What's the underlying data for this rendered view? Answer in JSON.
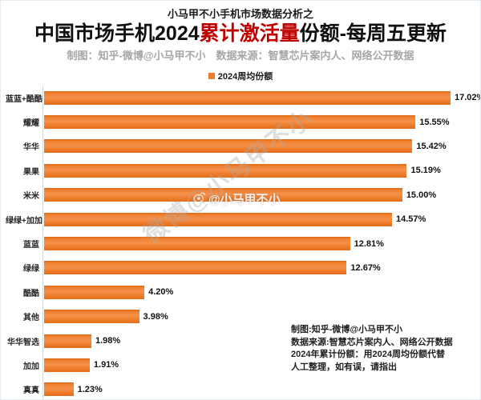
{
  "page": {
    "top_note": "小马甲不小手机市场数据分析之",
    "title": {
      "part1": "中国市场手机2024",
      "highlight": "累计激活量",
      "part2": "份额-每周五更新"
    },
    "subtitle": "制图：知乎-微博@小马甲不小　数据来源：智慧芯片案内人、网络公开数据",
    "legend": {
      "label": "2024周均份额",
      "swatch_color": "#ED7D31"
    }
  },
  "chart_data": {
    "type": "bar",
    "orientation": "horizontal",
    "title": "中国市场手机2024累计激活量份额-每周五更新",
    "legend_label": "2024周均份额",
    "legend_position": "top-center",
    "categories": [
      "蓝蓝+酷酷",
      "耀耀",
      "华华",
      "果果",
      "米米",
      "绿绿+加加",
      "蓝蓝",
      "绿绿",
      "酷酷",
      "其他",
      "华华智选",
      "加加",
      "真真"
    ],
    "values": [
      17.02,
      15.55,
      15.42,
      15.19,
      15.0,
      14.57,
      12.81,
      12.67,
      4.2,
      3.98,
      1.98,
      1.91,
      1.23
    ],
    "value_labels": [
      "17.02%",
      "15.55%",
      "15.42%",
      "15.19%",
      "15.00%",
      "14.57%",
      "12.81%",
      "12.67%",
      "4.20%",
      "3.98%",
      "1.98%",
      "1.91%",
      "1.23%"
    ],
    "xlabel": "",
    "ylabel": "",
    "xlim": [
      0,
      18
    ],
    "grid": false,
    "bar_color": "#ED7D31"
  },
  "watermarks": {
    "horizontal": "@小马甲不小",
    "diagonal": "微博@小马甲不小"
  },
  "footnote": {
    "lines": [
      "制图:知乎-微博@小马甲不小",
      "数据来源:智慧芯片案内人、网络公开数据",
      "2024年累计份额：用2024周均份额代替",
      "人工整理，如有误，请指出"
    ]
  },
  "colors": {
    "accent": "#ED7D31",
    "title_highlight": "#C00000",
    "subtitle_gray": "#A6A6A6"
  }
}
